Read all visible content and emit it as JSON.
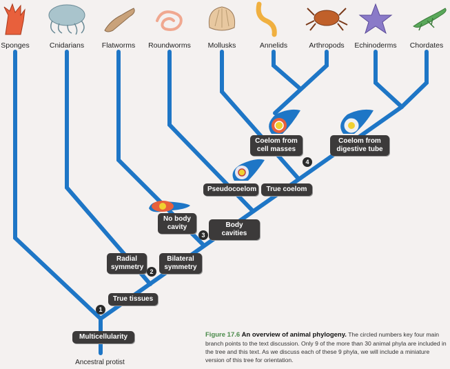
{
  "figure": {
    "phyla": [
      {
        "key": "sponges",
        "label": "Sponges"
      },
      {
        "key": "cnidarians",
        "label": "Cnidarians"
      },
      {
        "key": "flatworms",
        "label": "Flatworms"
      },
      {
        "key": "roundworms",
        "label": "Roundworms"
      },
      {
        "key": "mollusks",
        "label": "Mollusks"
      },
      {
        "key": "annelids",
        "label": "Annelids"
      },
      {
        "key": "arthropods",
        "label": "Arthropods"
      },
      {
        "key": "echinoderms",
        "label": "Echinoderms"
      },
      {
        "key": "chordates",
        "label": "Chordates"
      }
    ],
    "nodes": {
      "multicellularity": "Multicellularity",
      "true_tissues": "True tissues",
      "radial_symmetry": "Radial symmetry",
      "bilateral_symmetry": "Bilateral symmetry",
      "no_body_cavity": "No body cavity",
      "body_cavities": "Body cavities",
      "pseudocoelom": "Pseudocoelom",
      "true_coelom": "True coelom",
      "coelom_cell_masses": "Coelom from cell masses",
      "coelom_digestive": "Coelom from digestive tube"
    },
    "badges": [
      "1",
      "2",
      "3",
      "4"
    ],
    "root_label": "Ancestral protist",
    "caption": {
      "figure_number": "Figure 17.6",
      "title": "An overview of animal phylogeny.",
      "text": "The circled numbers key four main branch points to the text discussion. Only 9 of the more than 30 animal phyla are included in the tree and this text. As we discuss each of these 9 phyla, we will include a miniature version of this tree for orientation."
    },
    "colors": {
      "branch": "#1e76c6",
      "box": "#3c3a3a",
      "sponge": "#e8603c",
      "jellyfish": "#a9c4cc",
      "flatworm": "#c9a27a",
      "roundworm": "#f0a890",
      "mollusk": "#e8c8a0",
      "annelid": "#f0b040",
      "crab": "#c0602a",
      "starfish": "#8a7ac8",
      "lizard": "#5aa85a"
    }
  }
}
